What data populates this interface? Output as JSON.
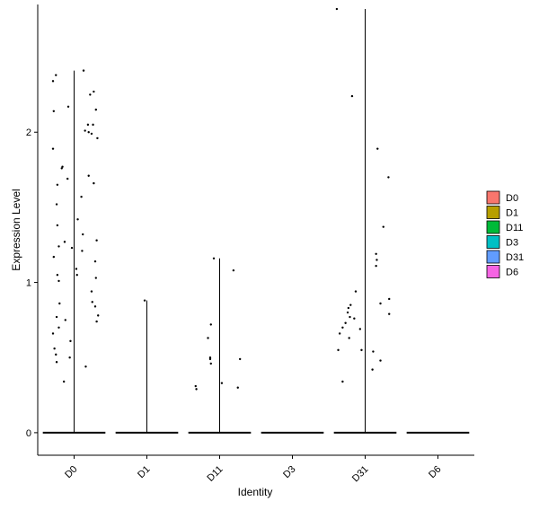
{
  "chart_data": {
    "type": "violin-jitter",
    "title": "",
    "xlabel": "Identity",
    "ylabel": "Expression Level",
    "categories": [
      "D0",
      "D1",
      "D11",
      "D3",
      "D31",
      "D6"
    ],
    "ylim": [
      -0.15,
      2.85
    ],
    "yticks": [
      0,
      1,
      2
    ],
    "grid": false,
    "legend_position": "right",
    "legend": [
      {
        "label": "D0",
        "color": "#F8766D"
      },
      {
        "label": "D1",
        "color": "#B79F00"
      },
      {
        "label": "D11",
        "color": "#00BA38"
      },
      {
        "label": "D3",
        "color": "#00BFC4"
      },
      {
        "label": "D31",
        "color": "#619CFF"
      },
      {
        "label": "D6",
        "color": "#F564E3"
      }
    ],
    "series": [
      {
        "category": "D0",
        "max": 2.41,
        "points": [
          {
            "dx": -0.29,
            "y": 2.34
          },
          {
            "dx": -0.25,
            "y": 2.38
          },
          {
            "dx": -0.08,
            "y": 2.17
          },
          {
            "dx": -0.28,
            "y": 2.14
          },
          {
            "dx": -0.29,
            "y": 1.89
          },
          {
            "dx": -0.17,
            "y": 1.76
          },
          {
            "dx": -0.16,
            "y": 1.77
          },
          {
            "dx": -0.09,
            "y": 1.69
          },
          {
            "dx": -0.23,
            "y": 1.65
          },
          {
            "dx": -0.24,
            "y": 1.52
          },
          {
            "dx": -0.23,
            "y": 1.38
          },
          {
            "dx": -0.13,
            "y": 1.27
          },
          {
            "dx": -0.21,
            "y": 1.24
          },
          {
            "dx": -0.03,
            "y": 1.23
          },
          {
            "dx": -0.28,
            "y": 1.17
          },
          {
            "dx": -0.23,
            "y": 1.05
          },
          {
            "dx": -0.21,
            "y": 1.01
          },
          {
            "dx": -0.2,
            "y": 0.86
          },
          {
            "dx": -0.24,
            "y": 0.77
          },
          {
            "dx": -0.12,
            "y": 0.75
          },
          {
            "dx": -0.21,
            "y": 0.7
          },
          {
            "dx": -0.29,
            "y": 0.66
          },
          {
            "dx": -0.05,
            "y": 0.61
          },
          {
            "dx": -0.27,
            "y": 0.56
          },
          {
            "dx": -0.25,
            "y": 0.52
          },
          {
            "dx": -0.06,
            "y": 0.5
          },
          {
            "dx": -0.24,
            "y": 0.47
          },
          {
            "dx": -0.14,
            "y": 0.34
          },
          {
            "dx": 0.13,
            "y": 2.41
          },
          {
            "dx": 0.27,
            "y": 2.27
          },
          {
            "dx": 0.22,
            "y": 2.25
          },
          {
            "dx": 0.3,
            "y": 2.15
          },
          {
            "dx": 0.19,
            "y": 2.05
          },
          {
            "dx": 0.26,
            "y": 2.05
          },
          {
            "dx": 0.15,
            "y": 2.01
          },
          {
            "dx": 0.2,
            "y": 2.0
          },
          {
            "dx": 0.24,
            "y": 1.99
          },
          {
            "dx": 0.32,
            "y": 1.96
          },
          {
            "dx": 0.2,
            "y": 1.71
          },
          {
            "dx": 0.27,
            "y": 1.66
          },
          {
            "dx": 0.1,
            "y": 1.57
          },
          {
            "dx": 0.05,
            "y": 1.42
          },
          {
            "dx": 0.12,
            "y": 1.32
          },
          {
            "dx": 0.31,
            "y": 1.28
          },
          {
            "dx": 0.11,
            "y": 1.21
          },
          {
            "dx": 0.29,
            "y": 1.14
          },
          {
            "dx": 0.03,
            "y": 1.09
          },
          {
            "dx": 0.04,
            "y": 1.05
          },
          {
            "dx": 0.3,
            "y": 1.03
          },
          {
            "dx": 0.24,
            "y": 0.94
          },
          {
            "dx": 0.25,
            "y": 0.87
          },
          {
            "dx": 0.29,
            "y": 0.84
          },
          {
            "dx": 0.33,
            "y": 0.78
          },
          {
            "dx": 0.31,
            "y": 0.74
          },
          {
            "dx": 0.16,
            "y": 0.44
          }
        ]
      },
      {
        "category": "D1",
        "max": 0.88,
        "points": [
          {
            "dx": -0.03,
            "y": 0.88
          }
        ]
      },
      {
        "category": "D11",
        "max": 1.16,
        "points": [
          {
            "dx": -0.08,
            "y": 1.16
          },
          {
            "dx": 0.19,
            "y": 1.08
          },
          {
            "dx": -0.12,
            "y": 0.72
          },
          {
            "dx": -0.16,
            "y": 0.63
          },
          {
            "dx": -0.13,
            "y": 0.5
          },
          {
            "dx": -0.13,
            "y": 0.49
          },
          {
            "dx": -0.12,
            "y": 0.46
          },
          {
            "dx": 0.28,
            "y": 0.49
          },
          {
            "dx": 0.03,
            "y": 0.33
          },
          {
            "dx": -0.33,
            "y": 0.31
          },
          {
            "dx": -0.32,
            "y": 0.29
          },
          {
            "dx": 0.25,
            "y": 0.3
          }
        ]
      },
      {
        "category": "D3",
        "max": 0,
        "points": []
      },
      {
        "category": "D31",
        "max": 2.82,
        "points": [
          {
            "dx": -0.39,
            "y": 2.82
          },
          {
            "dx": -0.18,
            "y": 2.24
          },
          {
            "dx": 0.17,
            "y": 1.89
          },
          {
            "dx": 0.32,
            "y": 1.7
          },
          {
            "dx": 0.25,
            "y": 1.37
          },
          {
            "dx": 0.15,
            "y": 1.19
          },
          {
            "dx": 0.16,
            "y": 1.15
          },
          {
            "dx": 0.15,
            "y": 1.11
          },
          {
            "dx": -0.13,
            "y": 0.94
          },
          {
            "dx": 0.33,
            "y": 0.89
          },
          {
            "dx": -0.2,
            "y": 0.85
          },
          {
            "dx": -0.23,
            "y": 0.83
          },
          {
            "dx": 0.21,
            "y": 0.86
          },
          {
            "dx": -0.24,
            "y": 0.8
          },
          {
            "dx": 0.33,
            "y": 0.79
          },
          {
            "dx": -0.21,
            "y": 0.77
          },
          {
            "dx": -0.15,
            "y": 0.76
          },
          {
            "dx": -0.27,
            "y": 0.73
          },
          {
            "dx": -0.31,
            "y": 0.7
          },
          {
            "dx": -0.07,
            "y": 0.69
          },
          {
            "dx": -0.35,
            "y": 0.66
          },
          {
            "dx": -0.22,
            "y": 0.63
          },
          {
            "dx": -0.05,
            "y": 0.55
          },
          {
            "dx": 0.11,
            "y": 0.54
          },
          {
            "dx": -0.37,
            "y": 0.55
          },
          {
            "dx": 0.21,
            "y": 0.48
          },
          {
            "dx": 0.1,
            "y": 0.42
          },
          {
            "dx": -0.31,
            "y": 0.34
          }
        ]
      },
      {
        "category": "D6",
        "max": 0,
        "points": []
      }
    ]
  }
}
